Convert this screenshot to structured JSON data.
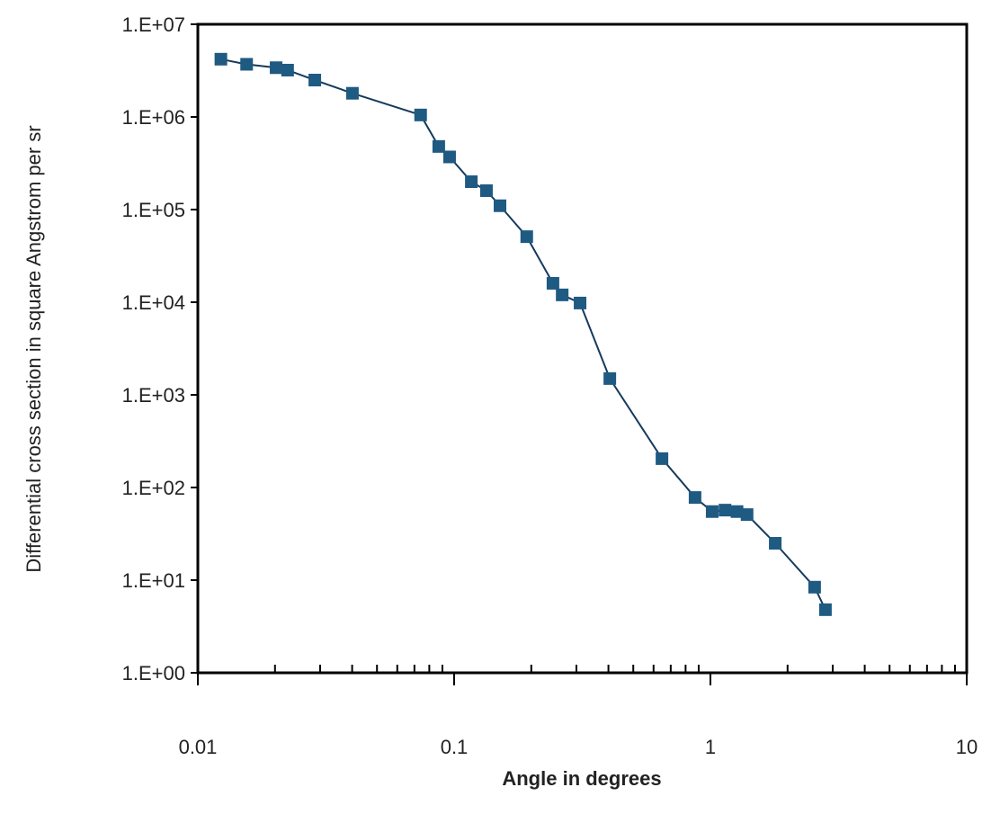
{
  "chart_data": {
    "type": "line",
    "x_label": "Angle in degrees",
    "y_label": "Differential cross section in square Angstrom per sr",
    "log_x": true,
    "log_y": true,
    "markers": true,
    "xlim": [
      0.01,
      10
    ],
    "ylim": [
      1,
      10000000
    ],
    "xticks": [
      0.01,
      0.1,
      1,
      10
    ],
    "xminorticks": [
      0.02,
      0.03,
      0.04,
      0.05,
      0.06,
      0.07,
      0.08,
      0.09,
      0.2,
      0.3,
      0.4,
      0.5,
      0.6,
      0.7,
      0.8,
      0.9,
      2,
      3,
      4,
      5,
      6,
      7,
      8,
      9
    ],
    "yticks": [
      {
        "value": 1,
        "label": "1.E+00"
      },
      {
        "value": 10,
        "label": "1.E+01"
      },
      {
        "value": 100,
        "label": "1.E+02"
      },
      {
        "value": 1000,
        "label": "1.E+03"
      },
      {
        "value": 10000,
        "label": "1.E+04"
      },
      {
        "value": 100000,
        "label": "1.E+05"
      },
      {
        "value": 1000000,
        "label": "1.E+06"
      },
      {
        "value": 10000000,
        "label": "1.E+07"
      }
    ],
    "x": [
      0.0123,
      0.0155,
      0.0202,
      0.0224,
      0.0286,
      0.0401,
      0.074,
      0.0871,
      0.096,
      0.1167,
      0.1337,
      0.151,
      0.192,
      0.243,
      0.264,
      0.31,
      0.405,
      0.647,
      0.871,
      1.016,
      1.14,
      1.27,
      1.39,
      1.79,
      2.55,
      2.81
    ],
    "series": [
      {
        "color": "#1f5a82",
        "values": [
          4200000,
          3700000,
          3400000,
          3200000,
          2500000,
          1800000,
          1050000,
          480000,
          370000,
          200000,
          160000,
          110000,
          51000,
          16000,
          12000,
          9800,
          1500,
          205,
          78,
          55,
          57,
          55,
          51,
          25,
          8.4,
          4.8
        ]
      }
    ]
  }
}
